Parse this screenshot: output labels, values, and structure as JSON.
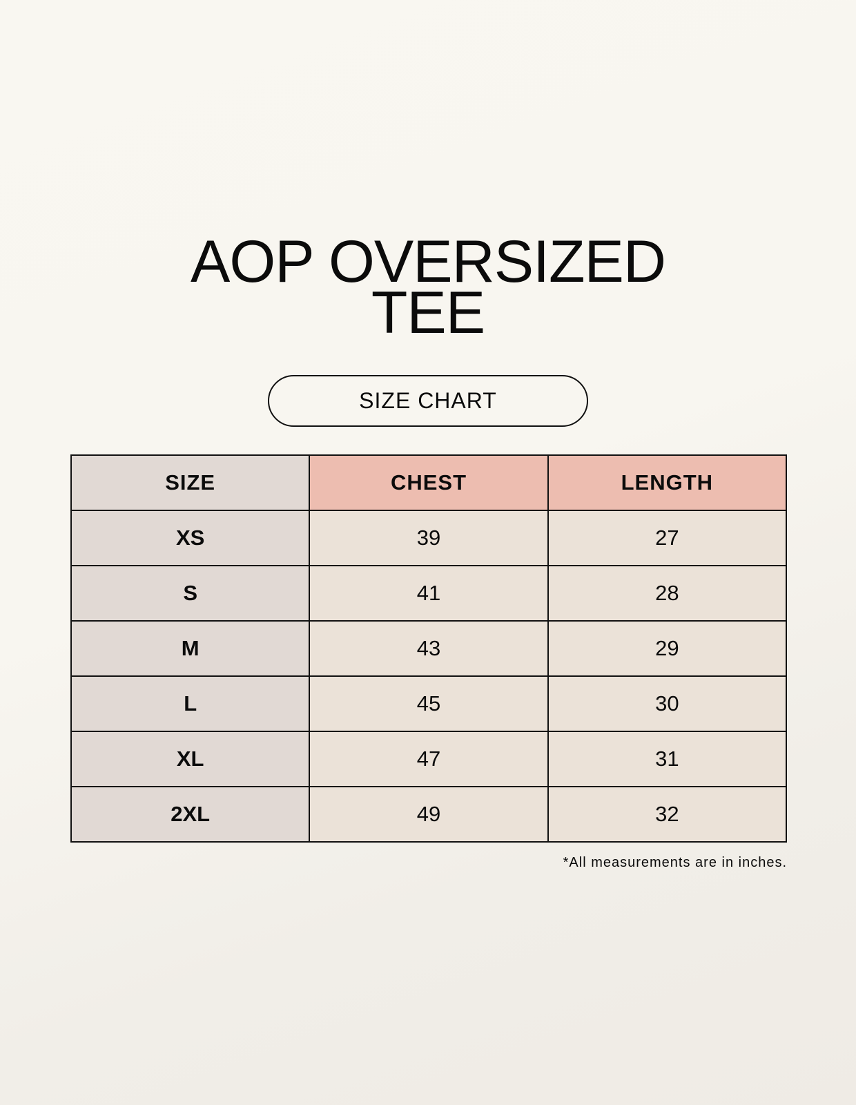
{
  "title_lines": [
    "AOP OVERSIZED",
    "TEE"
  ],
  "subtitle": "SIZE CHART",
  "table": {
    "headers": [
      "SIZE",
      "CHEST",
      "LENGTH"
    ],
    "rows": [
      [
        "XS",
        "39",
        "27"
      ],
      [
        "S",
        "41",
        "28"
      ],
      [
        "M",
        "43",
        "29"
      ],
      [
        "L",
        "45",
        "30"
      ],
      [
        "XL",
        "47",
        "31"
      ],
      [
        "2XL",
        "49",
        "32"
      ]
    ]
  },
  "footnote": "*All measurements are in inches.",
  "colors": {
    "size_column": "#e1d9d4",
    "header_accent": "#edbdb0",
    "value_cells": "#ebe2d8"
  }
}
